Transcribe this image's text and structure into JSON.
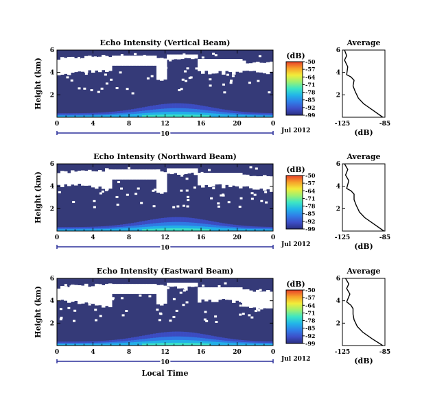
{
  "colors": {
    "background_echo": "#353a78",
    "noecho": "#ffffff",
    "scale": [
      "#2a2f80",
      "#3d4fc8",
      "#2f7fe8",
      "#22b6e8",
      "#3de6c4",
      "#9ef070",
      "#f2ec3a",
      "#f7a22a",
      "#e8402a"
    ]
  },
  "shared": {
    "day_label": "10",
    "month_label": "Jul 2012",
    "xlabel": "Local Time",
    "ylabel": "Height (km)",
    "cb_unit": "(dB)",
    "avg_title": "Average",
    "avg_xlabel": "(dB)"
  },
  "chart_data": [
    {
      "type": "heatmap",
      "title": "Echo Intensity (Vertical Beam)",
      "x": [
        0,
        24
      ],
      "xticks": [
        "0",
        "4",
        "8",
        "12",
        "16",
        "20",
        "0"
      ],
      "ylim": [
        0,
        6
      ],
      "yticks": [
        "2",
        "4",
        "6"
      ],
      "colorbar": {
        "ticks": [
          "-50",
          "-57",
          "-64",
          "-71",
          "-78",
          "-85",
          "-92",
          "-99"
        ],
        "range": [
          -99,
          -50
        ]
      },
      "average": {
        "title": "Average",
        "xlim": [
          -125,
          -85
        ],
        "xticks": [
          "-125",
          "-85"
        ],
        "yticks": [
          "2",
          "4",
          "6"
        ],
        "profile": [
          [
            -87,
            0
          ],
          [
            -96,
            0.6
          ],
          [
            -105,
            1.2
          ],
          [
            -110,
            1.7
          ],
          [
            -113,
            2.3
          ],
          [
            -115,
            2.8
          ],
          [
            -114,
            3.3
          ],
          [
            -117,
            3.6
          ],
          [
            -121,
            3.8
          ],
          [
            -120,
            4.5
          ],
          [
            -123,
            5.1
          ],
          [
            -121,
            5.5
          ],
          [
            -123,
            6
          ]
        ]
      }
    },
    {
      "type": "heatmap",
      "title": "Echo Intensity (Northward Beam)",
      "x": [
        0,
        24
      ],
      "xticks": [
        "0",
        "4",
        "8",
        "12",
        "16",
        "20",
        "0"
      ],
      "ylim": [
        0,
        6
      ],
      "yticks": [
        "2",
        "4",
        "6"
      ],
      "colorbar": {
        "ticks": [
          "-50",
          "-57",
          "-64",
          "-71",
          "-78",
          "-85",
          "-92",
          "-99"
        ],
        "range": [
          -99,
          -50
        ]
      },
      "average": {
        "title": "Average",
        "xlim": [
          -125,
          -85
        ],
        "xticks": [
          "-125",
          "-85"
        ],
        "yticks": [
          "2",
          "4",
          "6"
        ],
        "profile": [
          [
            -86,
            0
          ],
          [
            -95,
            0.6
          ],
          [
            -104,
            1.2
          ],
          [
            -109,
            1.7
          ],
          [
            -112,
            2.3
          ],
          [
            -114,
            2.8
          ],
          [
            -114,
            3.3
          ],
          [
            -117,
            3.6
          ],
          [
            -121,
            3.8
          ],
          [
            -119,
            4.5
          ],
          [
            -122,
            5.0
          ],
          [
            -120,
            5.5
          ],
          [
            -123,
            6
          ]
        ]
      }
    },
    {
      "type": "heatmap",
      "title": "Echo Intensity (Eastward Beam)",
      "x": [
        0,
        24
      ],
      "xticks": [
        "0",
        "4",
        "8",
        "12",
        "16",
        "20",
        "0"
      ],
      "ylim": [
        0,
        6
      ],
      "yticks": [
        "2",
        "4",
        "6"
      ],
      "colorbar": {
        "ticks": [
          "-50",
          "-57",
          "-64",
          "-71",
          "-78",
          "-85",
          "-92",
          "-99"
        ],
        "range": [
          -99,
          -50
        ]
      },
      "average": {
        "title": "Average",
        "xlim": [
          -125,
          -85
        ],
        "xticks": [
          "-125",
          "-85"
        ],
        "yticks": [
          "2",
          "4",
          "6"
        ],
        "profile": [
          [
            -87,
            0
          ],
          [
            -97,
            0.6
          ],
          [
            -106,
            1.2
          ],
          [
            -111,
            1.7
          ],
          [
            -114,
            2.3
          ],
          [
            -115,
            2.8
          ],
          [
            -115,
            3.3
          ],
          [
            -117,
            3.6
          ],
          [
            -121,
            3.9
          ],
          [
            -118,
            4.6
          ],
          [
            -121,
            5.1
          ],
          [
            -119,
            5.5
          ],
          [
            -122,
            6
          ]
        ]
      }
    }
  ]
}
